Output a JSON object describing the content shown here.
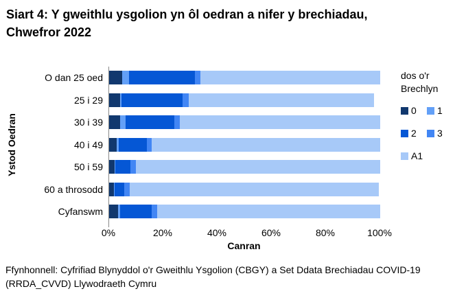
{
  "chart_data": {
    "type": "bar",
    "orientation": "horizontal",
    "stacked": true,
    "title": "Siart 4: Y gweithlu ysgolion yn ôl oedran a nifer y brechiadau, Chwefror 2022",
    "categories": [
      "O dan 25 oed",
      "25 i 29",
      "30 i 39",
      "40 i 49",
      "50 i 59",
      "60 a throsodd",
      "Cyfanswm"
    ],
    "series": [
      {
        "name": "0",
        "color": "#11386e",
        "values": [
          4.8,
          4.1,
          4.0,
          2.8,
          1.9,
          1.7,
          3.2
        ]
      },
      {
        "name": "1",
        "color": "#63a0f7",
        "values": [
          2.5,
          0.5,
          2.1,
          0.8,
          0.5,
          0.4,
          0.8
        ]
      },
      {
        "name": "2",
        "color": "#0557d5",
        "values": [
          24.3,
          22.5,
          18.0,
          10.3,
          5.4,
          3.5,
          11.8
        ]
      },
      {
        "name": "3",
        "color": "#4286f4",
        "values": [
          2.0,
          2.3,
          1.9,
          1.7,
          2.0,
          2.0,
          2.0
        ]
      },
      {
        "name": "A1",
        "color": "#a7c9f8",
        "values": [
          66.4,
          68.3,
          74.0,
          84.4,
          90.2,
          91.9,
          82.2
        ]
      }
    ],
    "xlabel": "Canran",
    "ylabel": "Ystod Oedran",
    "xlim": [
      0,
      100
    ],
    "xticks": [
      0,
      20,
      40,
      60,
      80,
      100
    ],
    "xtick_labels": [
      "0%",
      "20%",
      "40%",
      "60%",
      "80%",
      "100%"
    ],
    "legend_title": "dos o'r Brechlyn",
    "legend_position": "right",
    "grid": false,
    "axis_color": "#898989"
  },
  "source": "Ffynhonnell: Cyfrifiad Blynyddol o'r Gweithlu Ysgolion (CBGY) a Set Ddata Brechiadau COVID-19 (RRDA_CVVD) Llywodraeth Cymru"
}
